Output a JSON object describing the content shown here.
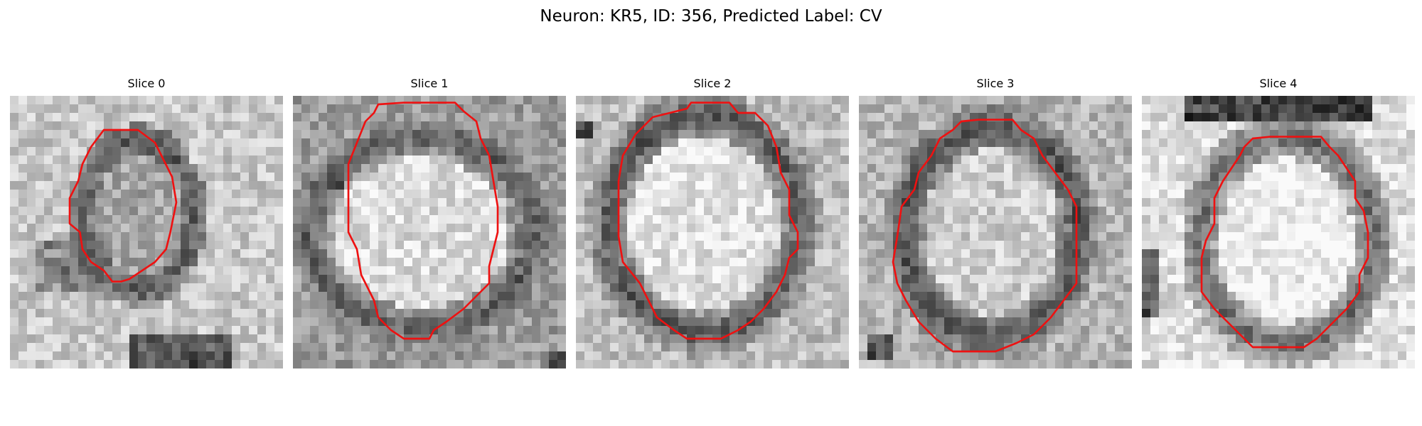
{
  "figure": {
    "title": "Neuron: KR5, ID: 356, Predicted Label: CV"
  },
  "colors": {
    "contour": "#ee1111",
    "background": "#ffffff",
    "cell_interior": "#e6e6e6",
    "dark_ring": "#5a5a5a"
  },
  "slices": [
    {
      "title": "Slice 0"
    },
    {
      "title": "Slice 1"
    },
    {
      "title": "Slice 2"
    },
    {
      "title": "Slice 3"
    },
    {
      "title": "Slice 4"
    }
  ]
}
